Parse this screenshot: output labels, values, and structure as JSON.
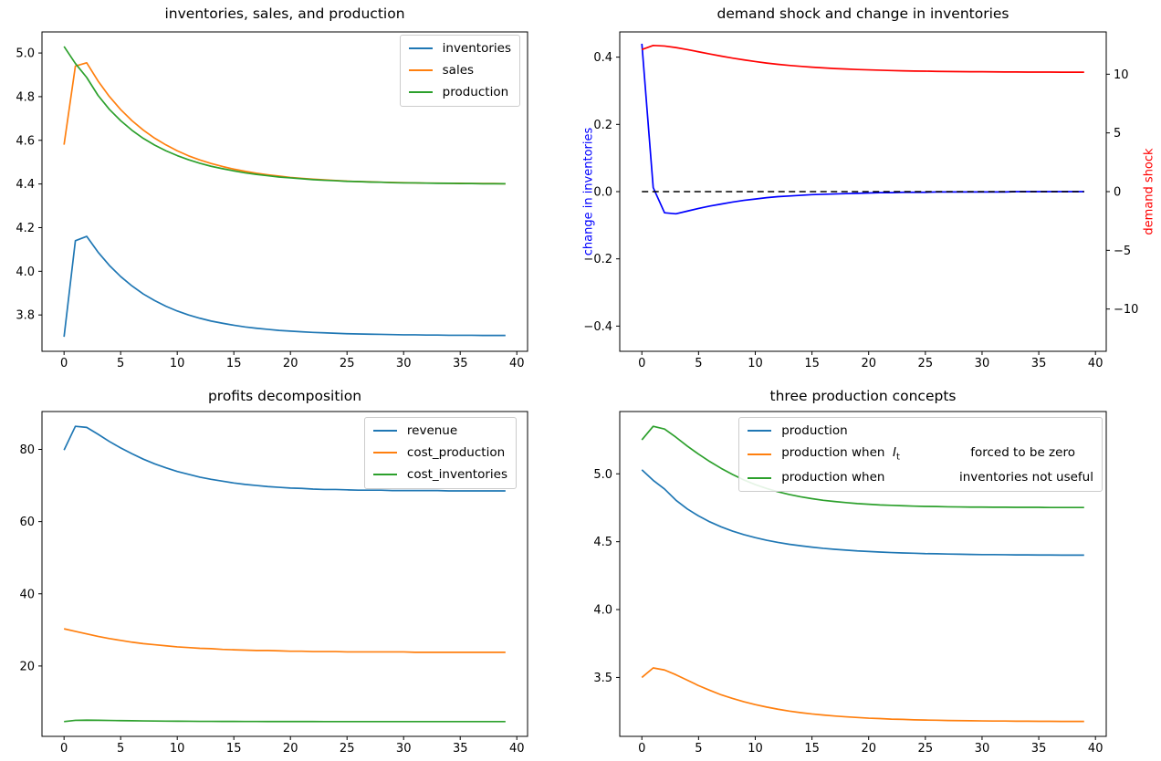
{
  "figure": {
    "background": "#ffffff"
  },
  "colors": {
    "c0_blue": "#1f77b4",
    "c1_orange": "#ff7f0e",
    "c2_green": "#2ca02c",
    "pure_blue": "#0000ff",
    "pure_red": "#ff0000",
    "dashed_black": "#000000"
  },
  "chart_data": [
    {
      "type": "line",
      "title": "inventories, sales, and production",
      "xlim": [
        -1.95,
        40.95
      ],
      "xticks": [
        0,
        5,
        10,
        15,
        20,
        25,
        30,
        35,
        40
      ],
      "ylim": [
        3.6335,
        5.0965
      ],
      "yticks": [
        3.8,
        4.0,
        4.2,
        4.4,
        4.6,
        4.8,
        5.0
      ],
      "ytick_decimals": 1,
      "legend_loc": "upper right",
      "grid": false,
      "series": [
        {
          "name": "inventories",
          "color": "#1f77b4",
          "values": [
            3.7,
            4.14,
            4.16,
            4.088,
            4.027,
            3.976,
            3.933,
            3.896,
            3.866,
            3.84,
            3.818,
            3.8,
            3.785,
            3.772,
            3.762,
            3.753,
            3.745,
            3.739,
            3.734,
            3.729,
            3.726,
            3.723,
            3.72,
            3.718,
            3.716,
            3.714,
            3.713,
            3.712,
            3.711,
            3.71,
            3.709,
            3.709,
            3.708,
            3.708,
            3.707,
            3.707,
            3.707,
            3.706,
            3.706,
            3.706
          ]
        },
        {
          "name": "sales",
          "color": "#ff7f0e",
          "values": [
            4.58,
            4.94,
            4.955,
            4.872,
            4.801,
            4.741,
            4.69,
            4.647,
            4.61,
            4.579,
            4.552,
            4.529,
            4.51,
            4.494,
            4.48,
            4.468,
            4.458,
            4.449,
            4.442,
            4.436,
            4.43,
            4.426,
            4.422,
            4.419,
            4.416,
            4.413,
            4.411,
            4.41,
            4.408,
            4.407,
            4.406,
            4.405,
            4.404,
            4.404,
            4.403,
            4.403,
            4.402,
            4.402,
            4.402,
            4.401
          ]
        },
        {
          "name": "production",
          "color": "#2ca02c",
          "values": [
            5.03,
            4.952,
            4.888,
            4.806,
            4.742,
            4.69,
            4.646,
            4.609,
            4.578,
            4.552,
            4.53,
            4.511,
            4.495,
            4.481,
            4.47,
            4.46,
            4.451,
            4.444,
            4.438,
            4.432,
            4.428,
            4.424,
            4.42,
            4.417,
            4.415,
            4.412,
            4.411,
            4.409,
            4.408,
            4.406,
            4.405,
            4.405,
            4.404,
            4.403,
            4.403,
            4.402,
            4.402,
            4.401,
            4.401,
            4.401
          ]
        }
      ]
    },
    {
      "type": "line",
      "title": "demand shock and change in inventories",
      "xlim": [
        -1.95,
        40.95
      ],
      "xticks": [
        0,
        5,
        10,
        15,
        20,
        25,
        30,
        35,
        40
      ],
      "ylim": [
        -0.475,
        0.475
      ],
      "yticks": [
        -0.4,
        -0.2,
        0.0,
        0.2,
        0.4
      ],
      "ytick_decimals": 1,
      "ylabel_left": "change in inventories",
      "ylabel_left_color": "#0000ff",
      "ylabel_right": "demand shock",
      "ylabel_right_color": "#ff0000",
      "right_ylim": [
        -13.6,
        13.6
      ],
      "right_yticks": [
        -10,
        -5,
        0,
        5,
        10
      ],
      "right_ytick_decimals": 0,
      "zero_line": true,
      "grid": false,
      "series": [
        {
          "name": "change in inventories",
          "color": "#0000ff",
          "axis": "left",
          "values": [
            0.44,
            0.012,
            -0.063,
            -0.066,
            -0.058,
            -0.05,
            -0.043,
            -0.037,
            -0.031,
            -0.026,
            -0.022,
            -0.018,
            -0.015,
            -0.013,
            -0.011,
            -0.009,
            -0.008,
            -0.007,
            -0.006,
            -0.005,
            -0.004,
            -0.003,
            -0.003,
            -0.002,
            -0.002,
            -0.002,
            -0.001,
            -0.001,
            -0.001,
            -0.001,
            -0.001,
            -0.001,
            -0.001,
            0,
            0,
            0,
            0,
            0,
            0,
            0
          ]
        },
        {
          "name": "demand shock",
          "color": "#ff0000",
          "axis": "right",
          "values": [
            12.1,
            12.45,
            12.4,
            12.27,
            12.1,
            11.91,
            11.72,
            11.54,
            11.37,
            11.22,
            11.08,
            10.95,
            10.84,
            10.75,
            10.67,
            10.6,
            10.54,
            10.48,
            10.44,
            10.4,
            10.37,
            10.34,
            10.31,
            10.29,
            10.27,
            10.26,
            10.24,
            10.23,
            10.22,
            10.21,
            10.21,
            10.2,
            10.19,
            10.19,
            10.18,
            10.18,
            10.18,
            10.17,
            10.17,
            10.17
          ]
        }
      ]
    },
    {
      "type": "line",
      "title": "profits decomposition",
      "xlim": [
        -1.95,
        40.95
      ],
      "xticks": [
        0,
        5,
        10,
        15,
        20,
        25,
        30,
        35,
        40
      ],
      "ylim": [
        0.51,
        90.49
      ],
      "yticks": [
        20,
        40,
        60,
        80
      ],
      "ytick_decimals": 0,
      "legend_loc": "upper right",
      "grid": false,
      "series": [
        {
          "name": "revenue",
          "color": "#1f77b4",
          "values": [
            79.8,
            86.4,
            86.1,
            84.2,
            82.2,
            80.4,
            78.8,
            77.3,
            76.0,
            74.9,
            73.9,
            73.1,
            72.3,
            71.7,
            71.2,
            70.7,
            70.3,
            70.0,
            69.7,
            69.5,
            69.3,
            69.2,
            69.0,
            68.9,
            68.9,
            68.8,
            68.7,
            68.7,
            68.7,
            68.6,
            68.6,
            68.6,
            68.6,
            68.6,
            68.5,
            68.5,
            68.5,
            68.5,
            68.5,
            68.5
          ]
        },
        {
          "name": "cost_production",
          "color": "#ff7f0e",
          "values": [
            30.3,
            29.6,
            28.9,
            28.2,
            27.6,
            27.1,
            26.6,
            26.2,
            25.9,
            25.6,
            25.3,
            25.1,
            24.9,
            24.8,
            24.6,
            24.5,
            24.4,
            24.3,
            24.3,
            24.2,
            24.1,
            24.1,
            24.0,
            24.0,
            24.0,
            23.9,
            23.9,
            23.9,
            23.9,
            23.9,
            23.9,
            23.8,
            23.8,
            23.8,
            23.8,
            23.8,
            23.8,
            23.8,
            23.8,
            23.8
          ]
        },
        {
          "name": "cost_inventories",
          "color": "#2ca02c",
          "values": [
            4.6,
            4.95,
            5.0,
            4.97,
            4.92,
            4.87,
            4.83,
            4.79,
            4.76,
            4.73,
            4.71,
            4.69,
            4.67,
            4.66,
            4.65,
            4.64,
            4.63,
            4.63,
            4.62,
            4.62,
            4.61,
            4.61,
            4.61,
            4.6,
            4.6,
            4.6,
            4.6,
            4.6,
            4.6,
            4.6,
            4.6,
            4.6,
            4.6,
            4.6,
            4.6,
            4.6,
            4.6,
            4.6,
            4.6,
            4.6
          ]
        }
      ]
    },
    {
      "type": "line",
      "title": "three production concepts",
      "xlim": [
        -1.95,
        40.95
      ],
      "xticks": [
        0,
        5,
        10,
        15,
        20,
        25,
        30,
        35,
        40
      ],
      "ylim": [
        3.066,
        5.459
      ],
      "yticks": [
        3.5,
        4.0,
        4.5,
        5.0
      ],
      "ytick_decimals": 1,
      "legend_loc": "upper right",
      "grid": false,
      "series": [
        {
          "name": "production",
          "color": "#1f77b4",
          "values": [
            5.03,
            4.952,
            4.888,
            4.806,
            4.742,
            4.69,
            4.646,
            4.609,
            4.578,
            4.552,
            4.53,
            4.511,
            4.495,
            4.481,
            4.47,
            4.46,
            4.451,
            4.444,
            4.438,
            4.432,
            4.428,
            4.424,
            4.42,
            4.417,
            4.415,
            4.412,
            4.411,
            4.409,
            4.408,
            4.406,
            4.405,
            4.405,
            4.404,
            4.403,
            4.403,
            4.402,
            4.402,
            4.401,
            4.401,
            4.401
          ]
        },
        {
          "name": "production when  $I_t$                  forced to be zero",
          "color": "#ff7f0e",
          "values": [
            3.5,
            3.57,
            3.555,
            3.52,
            3.48,
            3.44,
            3.405,
            3.372,
            3.345,
            3.321,
            3.3,
            3.282,
            3.266,
            3.252,
            3.241,
            3.231,
            3.223,
            3.216,
            3.21,
            3.205,
            3.2,
            3.197,
            3.193,
            3.191,
            3.188,
            3.186,
            3.185,
            3.183,
            3.182,
            3.181,
            3.18,
            3.179,
            3.179,
            3.178,
            3.178,
            3.177,
            3.177,
            3.176,
            3.176,
            3.176
          ]
        },
        {
          "name": "production when                   inventories not useful",
          "color": "#2ca02c",
          "values": [
            5.25,
            5.35,
            5.33,
            5.27,
            5.205,
            5.145,
            5.09,
            5.04,
            4.995,
            4.955,
            4.921,
            4.892,
            4.868,
            4.848,
            4.831,
            4.817,
            4.805,
            4.796,
            4.788,
            4.781,
            4.776,
            4.771,
            4.768,
            4.765,
            4.762,
            4.76,
            4.759,
            4.757,
            4.756,
            4.755,
            4.755,
            4.754,
            4.754,
            4.753,
            4.753,
            4.753,
            4.752,
            4.752,
            4.752,
            4.752
          ]
        }
      ]
    }
  ]
}
